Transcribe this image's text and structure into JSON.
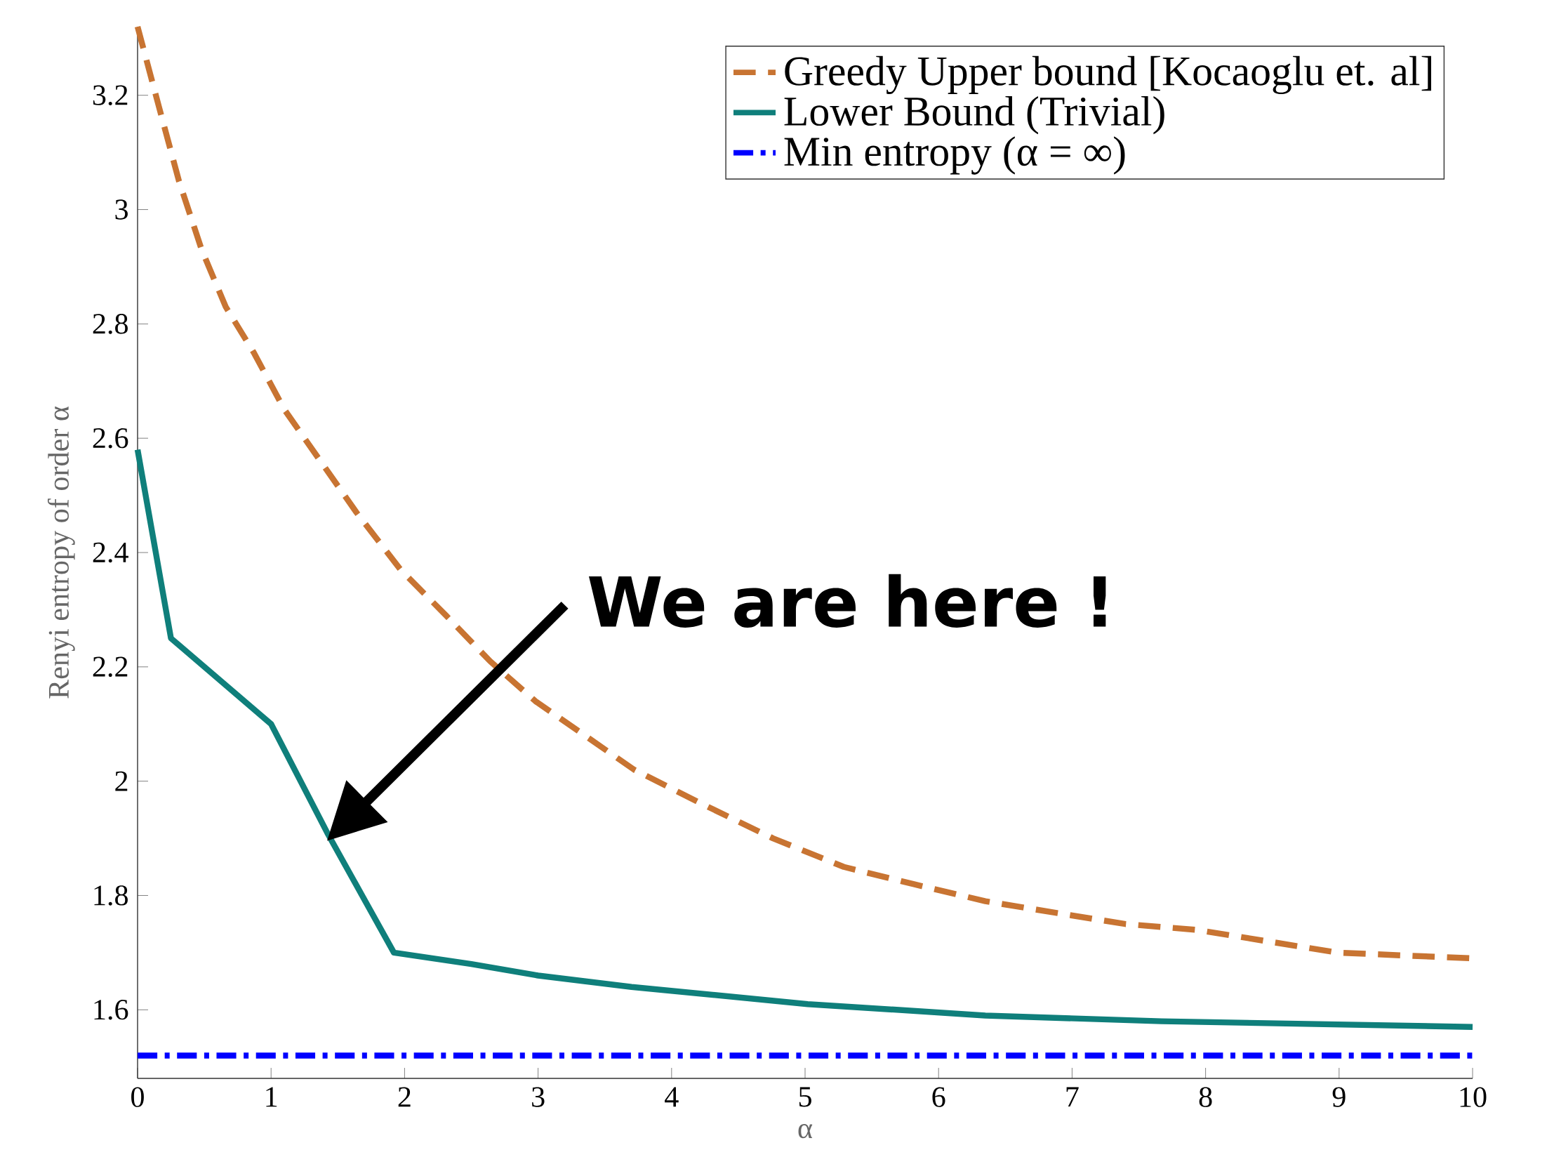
{
  "chart_data": {
    "type": "line",
    "xlabel": "α",
    "ylabel": "Renyi entropy of order α",
    "xlim": [
      0,
      10
    ],
    "ylim": [
      1.48,
      3.32
    ],
    "xticks": [
      0,
      1,
      2,
      3,
      4,
      5,
      6,
      7,
      8,
      9,
      10
    ],
    "yticks": [
      1.6,
      1.8,
      2,
      2.2,
      2.4,
      2.6,
      2.8,
      3,
      3.2
    ],
    "legend": "top right",
    "grid": false,
    "annotations": [
      "We are here !"
    ],
    "series": [
      {
        "name": "Greedy Upper bound [Kocaoglu et. al]",
        "color": "#c87432",
        "line_style": "dashed",
        "x": [
          0,
          0.16,
          0.31,
          0.48,
          0.66,
          0.87,
          1.1,
          1.37,
          1.64,
          1.97,
          2.31,
          2.64,
          2.98,
          3.72,
          4.23,
          4.76,
          5.29,
          5.81,
          6.35,
          6.87,
          7.4,
          7.93,
          8.46,
          8.99,
          10
        ],
        "values": [
          3.32,
          3.18,
          3.05,
          2.93,
          2.83,
          2.75,
          2.65,
          2.56,
          2.47,
          2.37,
          2.29,
          2.21,
          2.14,
          2.02,
          1.96,
          1.9,
          1.85,
          1.82,
          1.79,
          1.77,
          1.75,
          1.74,
          1.72,
          1.7,
          1.69
        ]
      },
      {
        "name": "Lower Bound (Trivial)",
        "color": "#0f7f7b",
        "line_style": "solid",
        "x": [
          0,
          0.25,
          1.0,
          1.42,
          1.92,
          2.5,
          3.0,
          3.7,
          5.02,
          6.35,
          7.67,
          10
        ],
        "values": [
          2.58,
          2.25,
          2.1,
          1.91,
          1.7,
          1.68,
          1.66,
          1.64,
          1.61,
          1.59,
          1.58,
          1.57
        ]
      },
      {
        "name": "Min entropy (α = ∞)",
        "color": "#0000ff",
        "line_style": "dashdot",
        "x": [
          0,
          10
        ],
        "values": [
          1.52,
          1.52
        ]
      }
    ]
  }
}
